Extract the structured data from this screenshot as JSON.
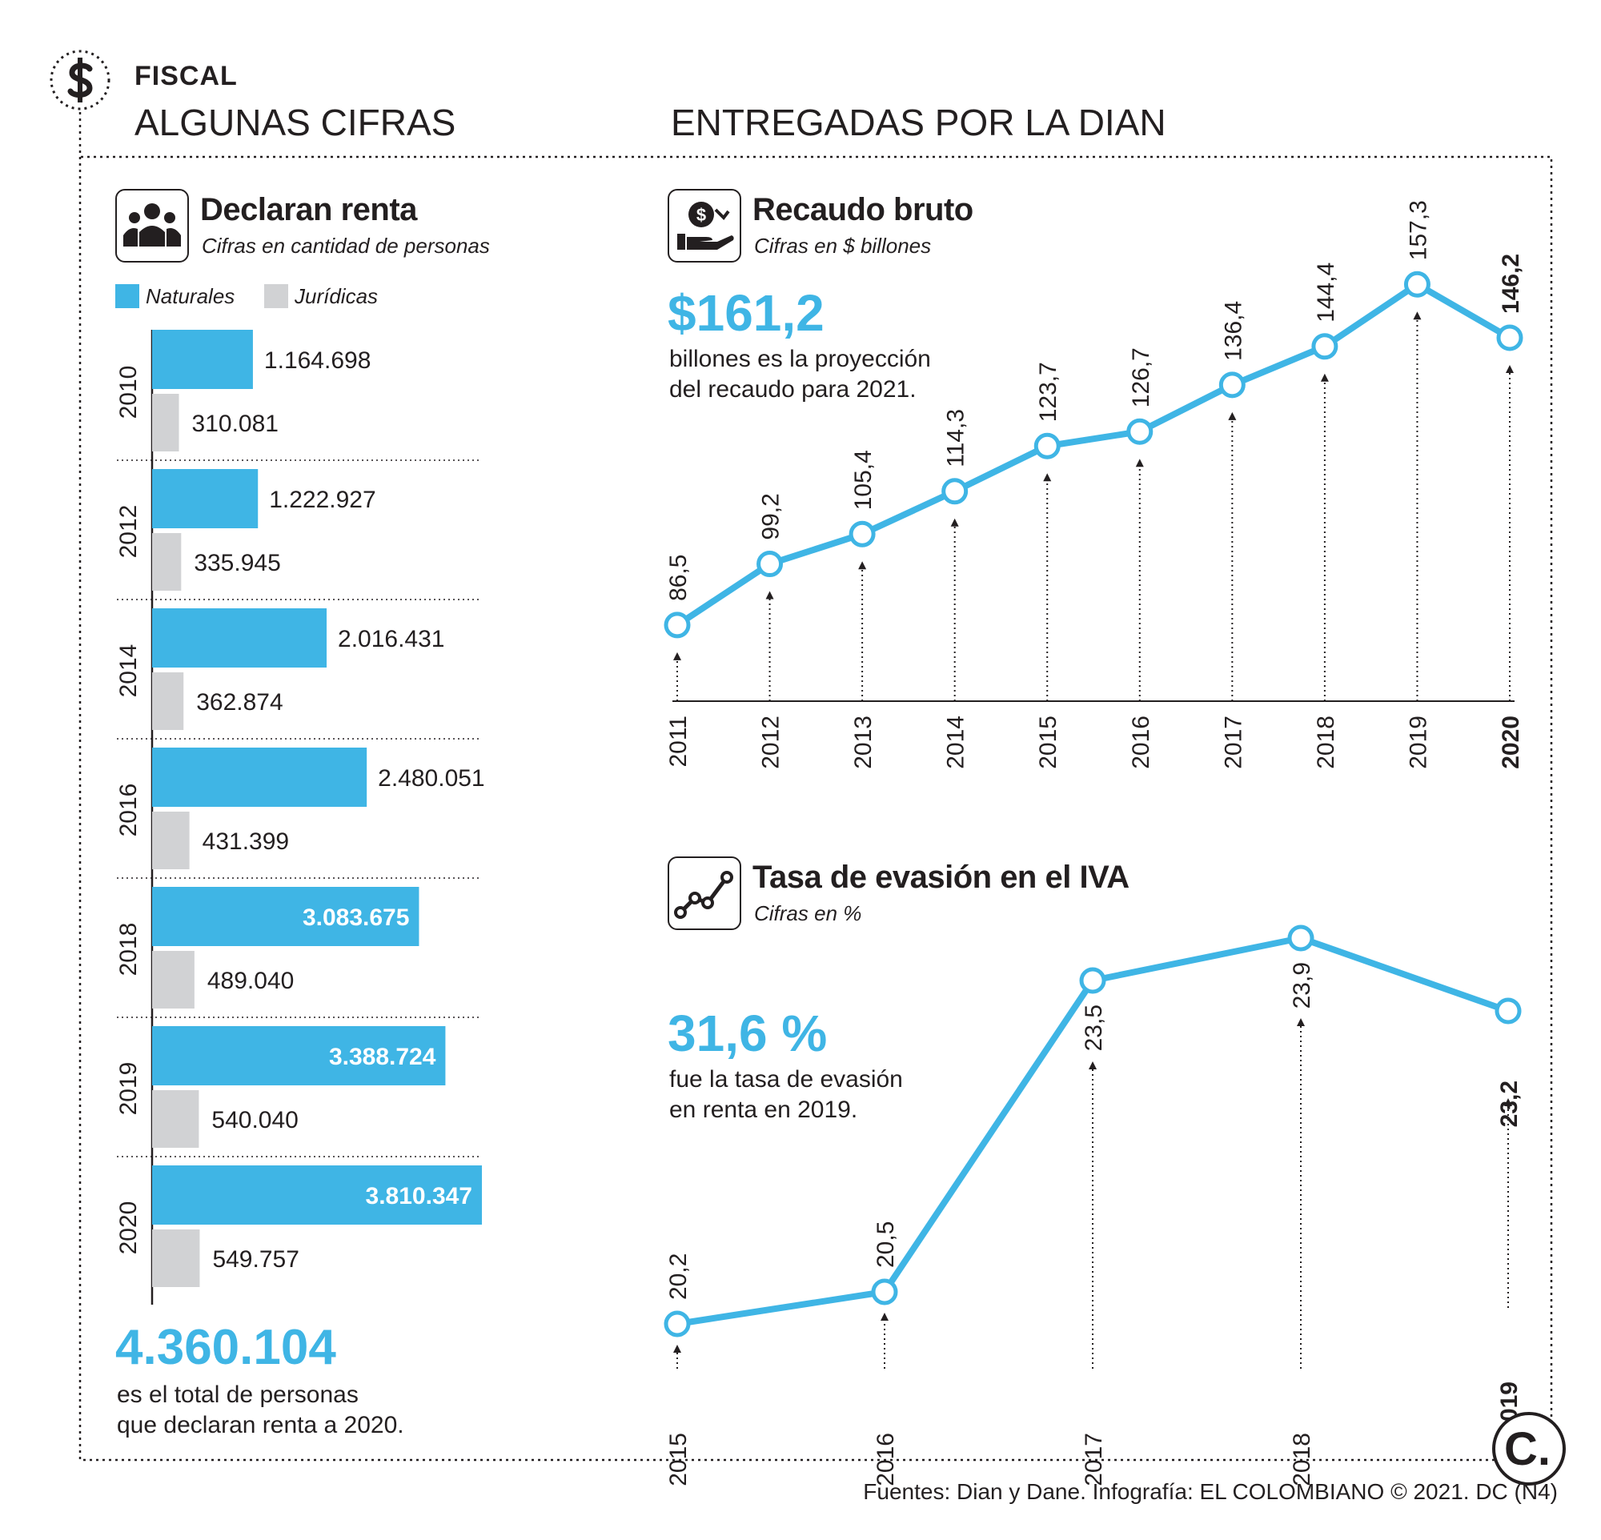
{
  "header": {
    "section": "FISCAL",
    "title_left": "ALGUNAS CIFRAS",
    "title_right": "ENTREGADAS POR LA DIAN"
  },
  "declaran": {
    "title": "Declaran renta",
    "subtitle": "Cifras en cantidad de personas",
    "legend": [
      "Naturales",
      "Jurídicas"
    ],
    "highlight": "4.360.104",
    "note": "es el total de personas\nque declaran renta a 2020."
  },
  "recaudo": {
    "title": "Recaudo bruto",
    "subtitle": "Cifras en $ billones",
    "highlight": "$161,2",
    "note": "billones es la proyección\ndel recaudo para 2021."
  },
  "evasion": {
    "title": "Tasa de evasión en el IVA",
    "subtitle": "Cifras en %",
    "highlight": "31,6 %",
    "note": "fue la tasa de evasión\nen renta en 2019."
  },
  "footer": {
    "source": "Fuentes: Dian y Dane. Infografía: EL COLOMBIANO © 2021. DC (N4)",
    "logo_letter": "C."
  },
  "colors": {
    "accent": "#3fb5e5",
    "gray": "#d1d2d4",
    "ink": "#231f20"
  },
  "chart_data": [
    {
      "type": "bar",
      "title": "Declaran renta",
      "categories": [
        "2010",
        "2012",
        "2014",
        "2016",
        "2018",
        "2019",
        "2020"
      ],
      "series": [
        {
          "name": "Naturales",
          "values": [
            1164698,
            1222927,
            2016431,
            2480051,
            3083675,
            3388724,
            3810347
          ],
          "labels": [
            "1.164.698",
            "1.222.927",
            "2.016.431",
            "2.480.051",
            "3.083.675",
            "3.388.724",
            "3.810.347"
          ]
        },
        {
          "name": "Jurídicas",
          "values": [
            310081,
            335945,
            362874,
            431399,
            489040,
            540040,
            549757
          ],
          "labels": [
            "310.081",
            "335.945",
            "362.874",
            "431.399",
            "489.040",
            "540.040",
            "549.757"
          ]
        }
      ],
      "orientation": "horizontal",
      "xlim": [
        0,
        3810347
      ],
      "grid": false
    },
    {
      "type": "line",
      "title": "Recaudo bruto",
      "x": [
        "2011",
        "2012",
        "2013",
        "2014",
        "2015",
        "2016",
        "2017",
        "2018",
        "2019",
        "2020"
      ],
      "values": [
        86.5,
        99.2,
        105.4,
        114.3,
        123.7,
        126.7,
        136.4,
        144.4,
        157.3,
        146.2
      ],
      "labels": [
        "86,5",
        "99,2",
        "105,4",
        "114,3",
        "123,7",
        "126,7",
        "136,4",
        "144,4",
        "157,3",
        "146,2"
      ],
      "ylim": [
        80,
        160
      ],
      "grid": false
    },
    {
      "type": "line",
      "title": "Tasa de evasión en el IVA",
      "x": [
        "2015",
        "2016",
        "2017",
        "2018",
        "2019"
      ],
      "values": [
        20.2,
        20.5,
        23.5,
        23.9,
        23.2
      ],
      "labels": [
        "20,2",
        "20,5",
        "23,5",
        "23,9",
        "23,2"
      ],
      "ylim": [
        20,
        24
      ],
      "grid": false
    }
  ]
}
